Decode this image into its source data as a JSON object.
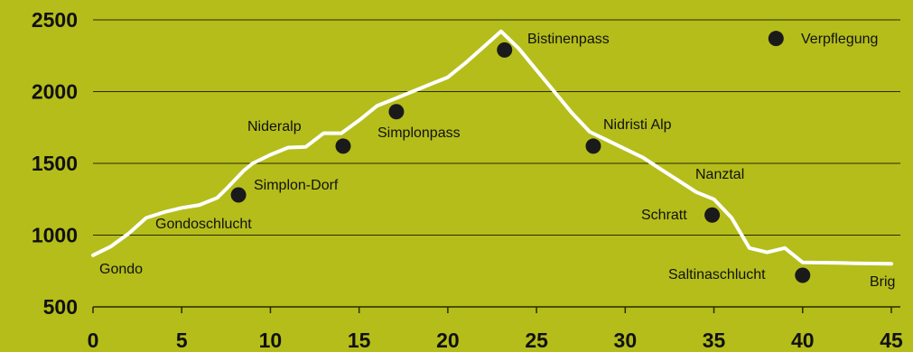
{
  "chart_data": {
    "type": "line",
    "xlim": [
      0,
      45
    ],
    "ylim": [
      500,
      2500
    ],
    "x_ticks": [
      "0",
      "5",
      "10",
      "15",
      "20",
      "25",
      "30",
      "35",
      "40",
      "45"
    ],
    "y_ticks": [
      "500",
      "1000",
      "1500",
      "2000",
      "2500"
    ],
    "grid": "horizontal",
    "colors": {
      "background": "#b5bd1a",
      "line": "#ffffff",
      "marker": "#1a1a1a",
      "text": "#111111",
      "grid": "#2a2a00"
    },
    "series": [
      {
        "x": [
          0,
          1,
          2,
          3,
          4,
          5,
          6,
          7,
          7.5,
          8.5,
          9,
          10,
          11,
          12,
          13,
          14,
          15,
          16,
          17,
          18,
          19,
          20,
          21,
          22,
          23,
          24,
          25,
          26,
          27,
          28,
          29,
          30,
          31,
          32,
          33,
          34,
          35,
          36,
          37,
          38,
          39,
          40,
          41,
          42,
          43,
          44,
          45
        ],
        "y": [
          860,
          920,
          1010,
          1120,
          1160,
          1190,
          1210,
          1260,
          1320,
          1450,
          1500,
          1560,
          1610,
          1615,
          1710,
          1710,
          1800,
          1900,
          1950,
          2000,
          2050,
          2100,
          2200,
          2310,
          2420,
          2300,
          2150,
          2000,
          1850,
          1720,
          1660,
          1600,
          1540,
          1460,
          1380,
          1300,
          1250,
          1120,
          910,
          880,
          910,
          810,
          808,
          806,
          804,
          802,
          800
        ]
      }
    ],
    "points": [
      {
        "label": "Verpflegung",
        "x": 38.5,
        "y": 2370
      },
      {
        "label": "Bistinenpass",
        "x": 23.2,
        "y": 2290
      },
      {
        "label": "Simplonpass",
        "x": 17.1,
        "y": 1860
      },
      {
        "label": "Nideralp",
        "x": 14.1,
        "y": 1620
      },
      {
        "label": "Nidristi Alp",
        "x": 28.2,
        "y": 1620
      },
      {
        "label": "Simplon-Dorf",
        "x": 8.2,
        "y": 1280
      },
      {
        "label": "Schratt",
        "x": 34.9,
        "y": 1140
      },
      {
        "label": "Saltinaschlucht",
        "x": 40.0,
        "y": 720
      }
    ],
    "annotations": [
      "Gondoschlucht",
      "Gondo",
      "Nanztal",
      "Brig"
    ]
  }
}
